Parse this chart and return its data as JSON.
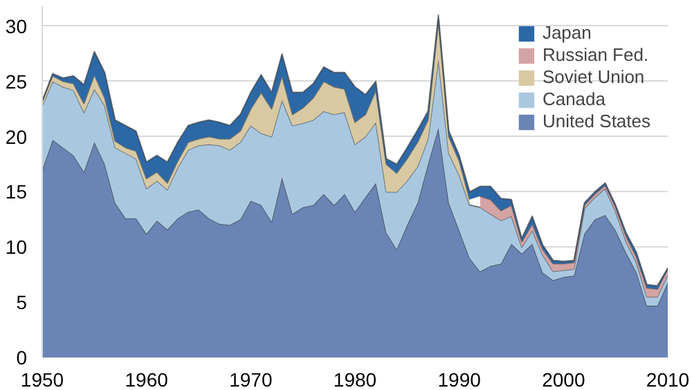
{
  "chart_data": {
    "type": "area",
    "stacked": true,
    "x": [
      1950,
      1951,
      1952,
      1953,
      1954,
      1955,
      1956,
      1957,
      1958,
      1959,
      1960,
      1961,
      1962,
      1963,
      1964,
      1965,
      1966,
      1967,
      1968,
      1969,
      1970,
      1971,
      1972,
      1973,
      1974,
      1975,
      1976,
      1977,
      1978,
      1979,
      1980,
      1981,
      1982,
      1983,
      1984,
      1985,
      1986,
      1987,
      1988,
      1989,
      1990,
      1991,
      1992,
      1993,
      1994,
      1995,
      1996,
      1997,
      1998,
      1999,
      2000,
      2001,
      2002,
      2003,
      2004,
      2005,
      2006,
      2007,
      2008,
      2009,
      2010
    ],
    "series": [
      {
        "name": "United States",
        "color": "#6a84b5",
        "values": [
          17,
          19.7,
          19,
          18.3,
          16.8,
          19.5,
          17.5,
          14,
          12.6,
          12.6,
          11.2,
          12.4,
          11.6,
          12.6,
          13.2,
          13.4,
          12.6,
          12.1,
          12,
          12.5,
          14.2,
          13.8,
          12.3,
          16.3,
          13,
          13.6,
          13.8,
          14.8,
          13.8,
          14.8,
          13.2,
          14.5,
          15.8,
          11.3,
          9.8,
          12,
          14,
          17.5,
          20.8,
          14,
          11.5,
          9,
          7.8,
          8.3,
          8.5,
          10.3,
          9.4,
          10.3,
          7.7,
          7,
          7.3,
          7.4,
          11.2,
          12.5,
          12.9,
          11.5,
          9.5,
          7.7,
          4.7,
          4.7,
          6.8
        ]
      },
      {
        "name": "Canada",
        "color": "#a9c8e0",
        "values": [
          5.8,
          5.3,
          5.5,
          5.9,
          5.4,
          4.8,
          5.3,
          5,
          5.9,
          5.4,
          4.1,
          3.6,
          3.6,
          4.6,
          5.6,
          5.8,
          6.7,
          7.1,
          6.8,
          7,
          6.8,
          6.5,
          7.7,
          7,
          8,
          7.6,
          7.7,
          7.5,
          8.2,
          7.4,
          6.1,
          5.5,
          5.5,
          3.7,
          5.2,
          4,
          3.3,
          2.3,
          6.2,
          4.5,
          5,
          4.8,
          5.8,
          4.7,
          3.9,
          2.5,
          0.6,
          1.2,
          1.6,
          0.8,
          0.6,
          0.6,
          2.3,
          2,
          2.4,
          1.7,
          1,
          0.9,
          0.8,
          0.8,
          0.7
        ]
      },
      {
        "name": "Soviet Union",
        "color": "#d8c9a3",
        "values": [
          0.4,
          0.5,
          0.5,
          0.6,
          0.8,
          1.3,
          0.7,
          0.6,
          0.5,
          0.7,
          0.9,
          0.8,
          0.6,
          0.6,
          0.7,
          0.6,
          0.7,
          0.6,
          1,
          1,
          1.5,
          3.7,
          2.5,
          2.2,
          1,
          1.4,
          2,
          2.7,
          2.5,
          2.1,
          2,
          2,
          2.9,
          2.5,
          1.7,
          2,
          2.2,
          1.7,
          3.5,
          1.5,
          1.3,
          0.5,
          null,
          null,
          null,
          null,
          null,
          null,
          null,
          null,
          null,
          null,
          null,
          null,
          null,
          null,
          null,
          null,
          null,
          null,
          null
        ]
      },
      {
        "name": "Russian Fed.",
        "color": "#d4a3a3",
        "values": [
          null,
          null,
          null,
          null,
          null,
          null,
          null,
          null,
          null,
          null,
          null,
          null,
          null,
          null,
          null,
          null,
          null,
          null,
          null,
          null,
          null,
          null,
          null,
          null,
          null,
          null,
          null,
          null,
          null,
          null,
          null,
          null,
          null,
          null,
          null,
          null,
          null,
          null,
          null,
          null,
          null,
          null,
          1,
          1.3,
          0.9,
          1,
          0.5,
          0.6,
          0.5,
          0.7,
          0.6,
          0.6,
          0.3,
          0.3,
          0.3,
          0.4,
          0.5,
          0.5,
          0.8,
          0.7,
          0.5
        ]
      },
      {
        "name": "Japan",
        "color": "#2c68a6",
        "values": [
          0,
          0.2,
          0.3,
          0.7,
          1.7,
          2.1,
          2.3,
          1.9,
          2,
          1.8,
          1.5,
          1.5,
          1.9,
          1.7,
          1.5,
          1.5,
          1.5,
          1.5,
          1.2,
          1.5,
          1.5,
          1.6,
          1.5,
          2,
          2,
          1.4,
          1.3,
          1.3,
          1.3,
          1.5,
          3.2,
          1.8,
          0.8,
          0.5,
          0.8,
          1,
          1.1,
          0.8,
          0.5,
          0.5,
          0.5,
          0.7,
          0.9,
          1.2,
          1.1,
          0.5,
          0.3,
          0.7,
          0.4,
          0.3,
          0.2,
          0.2,
          0.2,
          0.2,
          0.2,
          0.2,
          0.3,
          0.4,
          0.3,
          0.3,
          0.1
        ]
      }
    ],
    "xlim": [
      1950,
      2010
    ],
    "xticks": [
      1950,
      1960,
      1970,
      1980,
      1990,
      2000,
      2010
    ],
    "ylim": [
      0,
      31.8
    ],
    "yticks": [
      0,
      5,
      10,
      15,
      20,
      25,
      30
    ],
    "grid": "y",
    "legend": "top right"
  }
}
